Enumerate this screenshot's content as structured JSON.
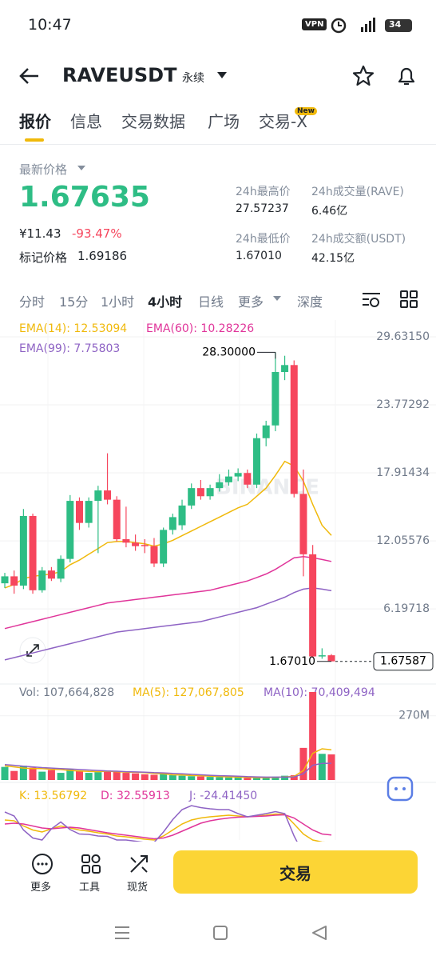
{
  "status_bar": {
    "time": "10:47",
    "vpn": "VPN",
    "battery": "34"
  },
  "header": {
    "symbol": "RAVEUSDT",
    "contract": "永续"
  },
  "tabs": [
    "报价",
    "信息",
    "交易数据",
    "广场",
    "交易-X"
  ],
  "tab_badge": "New",
  "ticker": {
    "last_price_label": "最新价格",
    "last_price": "1.67635",
    "cny": "¥11.43",
    "change": "-93.47%",
    "mark_price_label": "标记价格",
    "mark_price": "1.69186",
    "stats": [
      {
        "label": "24h最高价",
        "value": "27.57237"
      },
      {
        "label": "24h成交量(RAVE)",
        "value": "6.46亿"
      },
      {
        "label": "24h最低价",
        "value": "1.67010"
      },
      {
        "label": "24h成交额(USDT)",
        "value": "42.15亿"
      }
    ]
  },
  "intervals": [
    "分时",
    "15分",
    "1小时",
    "4小时",
    "日线",
    "更多",
    "深度"
  ],
  "active_interval": 3,
  "watermark": "BINANCE",
  "kline": {
    "ylim": [
      0.07,
      31.08
    ],
    "yticks": [
      {
        "value": 29.6315,
        "label": "29.63150"
      },
      {
        "value": 23.77292,
        "label": "23.77292"
      },
      {
        "value": 17.91434,
        "label": "17.91434"
      },
      {
        "value": 12.05576,
        "label": "12.05576"
      },
      {
        "value": 6.19718,
        "label": "6.19718"
      }
    ],
    "candles": [
      [
        8.4,
        9.3,
        8.0,
        9.0
      ],
      [
        9.0,
        9.5,
        7.5,
        8.2
      ],
      [
        8.2,
        14.8,
        7.9,
        14.2
      ],
      [
        14.2,
        14.4,
        7.5,
        7.8
      ],
      [
        7.8,
        9.8,
        7.6,
        9.5
      ],
      [
        9.5,
        9.8,
        8.6,
        8.8
      ],
      [
        8.8,
        10.8,
        8.5,
        10.5
      ],
      [
        10.5,
        16.0,
        10.2,
        15.5
      ],
      [
        15.5,
        15.8,
        13.0,
        13.6
      ],
      [
        13.6,
        15.8,
        13.2,
        15.5
      ],
      [
        15.5,
        16.8,
        11.0,
        16.4
      ],
      [
        16.4,
        19.6,
        15.2,
        15.6
      ],
      [
        15.6,
        15.9,
        12.0,
        12.2
      ],
      [
        12.2,
        15.0,
        11.5,
        11.9
      ],
      [
        11.9,
        12.6,
        11.2,
        11.6
      ],
      [
        11.7,
        12.2,
        11.0,
        11.6
      ],
      [
        11.6,
        12.3,
        9.8,
        10.1
      ],
      [
        10.1,
        13.2,
        9.8,
        13.0
      ],
      [
        13.0,
        14.4,
        12.6,
        14.1
      ],
      [
        13.4,
        15.6,
        13.0,
        15.1
      ],
      [
        15.1,
        17.0,
        14.8,
        16.6
      ],
      [
        16.6,
        17.3,
        15.6,
        15.9
      ],
      [
        15.9,
        16.9,
        15.6,
        16.6
      ],
      [
        16.6,
        17.8,
        16.3,
        17.1
      ],
      [
        17.1,
        18.2,
        16.8,
        17.6
      ],
      [
        17.6,
        18.3,
        17.2,
        17.9
      ],
      [
        17.9,
        18.2,
        16.6,
        16.9
      ],
      [
        16.9,
        21.3,
        16.6,
        20.9
      ],
      [
        20.9,
        22.4,
        20.2,
        22.0
      ],
      [
        22.0,
        28.3,
        21.5,
        26.6
      ],
      [
        26.6,
        28.0,
        25.9,
        27.2
      ],
      [
        27.2,
        27.6,
        15.8,
        16.1
      ],
      [
        16.1,
        18.2,
        9.0,
        10.9
      ],
      [
        10.9,
        11.7,
        2.0,
        2.1
      ],
      [
        2.1,
        2.8,
        1.9,
        2.2
      ],
      [
        2.2,
        2.3,
        1.6701,
        1.67587
      ]
    ],
    "up_color": "#2ebd85",
    "down_color": "#f6465d",
    "ema": [
      {
        "label": "EMA(14): 12.53094",
        "color": "#f0b90b",
        "values": [
          8.0,
          8.3,
          8.8,
          9.0,
          9.1,
          9.2,
          9.4,
          10.0,
          10.4,
          10.9,
          11.4,
          11.9,
          12.0,
          12.0,
          11.9,
          11.8,
          11.6,
          11.8,
          12.1,
          12.5,
          12.9,
          13.3,
          13.7,
          14.1,
          14.5,
          14.9,
          15.2,
          15.9,
          16.6,
          17.7,
          18.9,
          18.5,
          17.2,
          15.2,
          13.4,
          12.53
        ]
      },
      {
        "label": "EMA(60): 10.28226",
        "color": "#e0359a",
        "values": [
          4.5,
          4.7,
          4.9,
          5.1,
          5.3,
          5.5,
          5.7,
          5.9,
          6.1,
          6.3,
          6.5,
          6.7,
          6.8,
          6.9,
          7.0,
          7.1,
          7.2,
          7.3,
          7.4,
          7.5,
          7.6,
          7.7,
          7.8,
          8.0,
          8.2,
          8.4,
          8.6,
          8.9,
          9.2,
          9.6,
          10.1,
          10.6,
          10.7,
          10.6,
          10.45,
          10.28
        ]
      },
      {
        "label": "EMA(99): 7.75803",
        "color": "#8e63c4",
        "values": [
          1.8,
          2.0,
          2.2,
          2.4,
          2.6,
          2.8,
          3.0,
          3.2,
          3.4,
          3.6,
          3.8,
          4.0,
          4.2,
          4.3,
          4.4,
          4.5,
          4.6,
          4.7,
          4.8,
          4.9,
          5.0,
          5.1,
          5.3,
          5.5,
          5.7,
          5.9,
          6.1,
          6.3,
          6.6,
          6.9,
          7.2,
          7.6,
          7.9,
          8.0,
          7.9,
          7.76
        ]
      }
    ],
    "high_marker": {
      "value": 28.3,
      "label": "28.30000"
    },
    "low_marker": {
      "value": 1.6701,
      "label": "1.67010"
    },
    "current_price": {
      "value": 1.67587,
      "label": "1.67587"
    }
  },
  "volume": {
    "legend": "Vol: 107,664,828",
    "ylim": [
      0,
      380
    ],
    "yticks": [
      {
        "value": 270,
        "label": "270M"
      }
    ],
    "values": [
      55,
      38,
      60,
      52,
      35,
      42,
      30,
      45,
      38,
      30,
      33,
      40,
      35,
      30,
      28,
      24,
      22,
      26,
      20,
      18,
      16,
      15,
      13,
      12,
      11,
      10,
      9,
      10,
      12,
      14,
      18,
      20,
      135,
      370,
      110,
      107.664828
    ],
    "ma": [
      {
        "label": "MA(5): 127,067,805",
        "color": "#f0b90b",
        "values": [
          60,
          55,
          50,
          48,
          48,
          45,
          44,
          40,
          38,
          36,
          35,
          37,
          35,
          33,
          33,
          31,
          28,
          26,
          22,
          21,
          19,
          18,
          16,
          14,
          13,
          12,
          11,
          10,
          10,
          11,
          13,
          15,
          40,
          112,
          131,
          127.067805
        ]
      },
      {
        "label": "MA(10): 70,409,494",
        "color": "#8e63c4",
        "values": [
          65,
          62,
          58,
          55,
          52,
          50,
          48,
          46,
          44,
          42,
          40,
          38,
          37,
          35,
          34,
          33,
          31,
          30,
          28,
          26,
          24,
          22,
          20,
          18,
          17,
          16,
          14,
          13,
          12,
          12,
          12,
          13,
          26,
          62,
          70,
          70.409494
        ]
      }
    ]
  },
  "kdj": {
    "ylim": [
      -30,
      110
    ],
    "series": [
      {
        "label": "K: 13.56792",
        "color": "#f0b90b",
        "values": [
          70,
          68,
          55,
          45,
          40,
          48,
          55,
          50,
          45,
          42,
          38,
          35,
          30,
          28,
          25,
          22,
          20,
          30,
          45,
          60,
          70,
          75,
          78,
          80,
          82,
          80,
          78,
          80,
          82,
          85,
          84,
          60,
          35,
          20,
          15,
          13.56792
        ]
      },
      {
        "label": "D: 32.55913",
        "color": "#e0359a",
        "values": [
          60,
          62,
          60,
          55,
          50,
          48,
          50,
          52,
          50,
          46,
          42,
          38,
          35,
          32,
          29,
          26,
          23,
          25,
          32,
          42,
          52,
          62,
          68,
          72,
          75,
          77,
          78,
          79,
          80,
          82,
          83,
          75,
          60,
          45,
          35,
          32.55913
        ]
      },
      {
        "label": "J: -24.41450",
        "color": "#8e63c4",
        "values": [
          90,
          80,
          45,
          25,
          20,
          48,
          65,
          46,
          35,
          34,
          30,
          29,
          20,
          20,
          17,
          14,
          14,
          40,
          71,
          96,
          106,
          101,
          98,
          96,
          96,
          86,
          78,
          82,
          86,
          91,
          86,
          30,
          -15,
          -30,
          -25,
          -24.4145
        ]
      }
    ]
  },
  "bottom_bar": {
    "actions": [
      "更多",
      "工具",
      "现货"
    ],
    "trade_button": "交易"
  }
}
